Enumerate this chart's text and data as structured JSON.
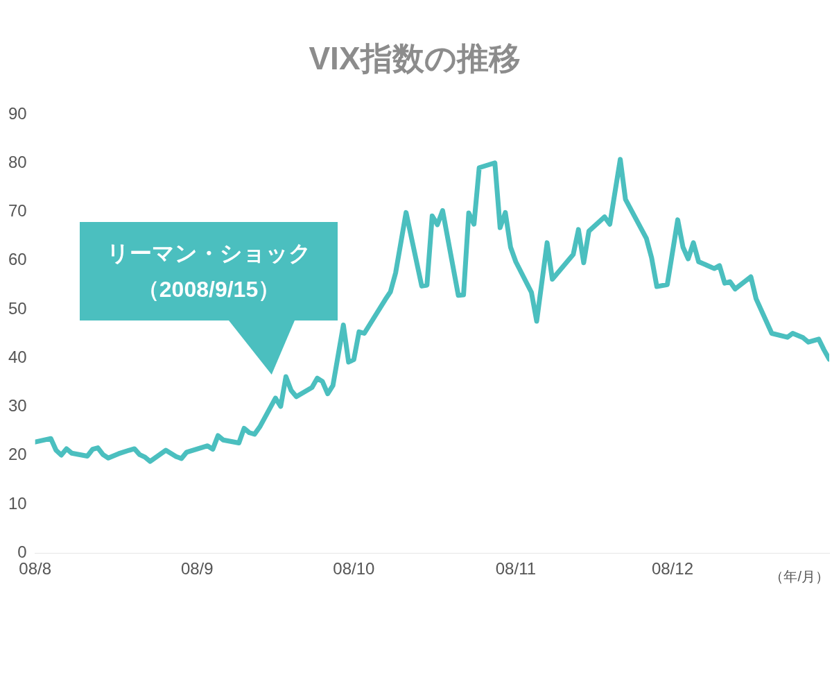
{
  "chart_data": {
    "type": "line",
    "title": "VIX指数の推移",
    "xlim": [
      "2008-08-01",
      "2008-12-31"
    ],
    "xticks": [
      {
        "value": "2008-08-01",
        "label": "08/8"
      },
      {
        "value": "2008-09-01",
        "label": "08/9"
      },
      {
        "value": "2008-10-01",
        "label": "08/10"
      },
      {
        "value": "2008-11-01",
        "label": "08/11"
      },
      {
        "value": "2008-12-01",
        "label": "08/12"
      }
    ],
    "ylim": [
      0,
      90
    ],
    "yticks": [
      0,
      10,
      20,
      30,
      40,
      50,
      60,
      70,
      80,
      90
    ],
    "grid": false,
    "legend": false,
    "marker": "none",
    "line_style": "solid",
    "annotations": [
      "リーマン・ショック（2008/9/15）",
      "（年/月）"
    ],
    "series": [
      {
        "color": "#4bbfbf",
        "x": [
          "2008-08-01",
          "2008-08-04",
          "2008-08-05",
          "2008-08-06",
          "2008-08-07",
          "2008-08-08",
          "2008-08-11",
          "2008-08-12",
          "2008-08-13",
          "2008-08-14",
          "2008-08-15",
          "2008-08-17",
          "2008-08-19",
          "2008-08-20",
          "2008-08-21",
          "2008-08-22",
          "2008-08-23",
          "2008-08-26",
          "2008-08-28",
          "2008-08-29",
          "2008-08-30",
          "2008-09-03",
          "2008-09-04",
          "2008-09-05",
          "2008-09-06",
          "2008-09-09",
          "2008-09-10",
          "2008-09-11",
          "2008-09-12",
          "2008-09-13",
          "2008-09-16",
          "2008-09-17",
          "2008-09-18",
          "2008-09-19",
          "2008-09-20",
          "2008-09-23",
          "2008-09-24",
          "2008-09-25",
          "2008-09-26",
          "2008-09-27",
          "2008-09-29",
          "2008-09-30",
          "2008-10-01",
          "2008-10-02",
          "2008-10-03",
          "2008-10-07",
          "2008-10-08",
          "2008-10-09",
          "2008-10-11",
          "2008-10-14",
          "2008-10-15",
          "2008-10-16",
          "2008-10-17",
          "2008-10-18",
          "2008-10-21",
          "2008-10-22",
          "2008-10-23",
          "2008-10-24",
          "2008-10-25",
          "2008-10-28",
          "2008-10-29",
          "2008-10-30",
          "2008-10-31",
          "2008-11-01",
          "2008-11-04",
          "2008-11-05",
          "2008-11-07",
          "2008-11-08",
          "2008-11-12",
          "2008-11-13",
          "2008-11-14",
          "2008-11-15",
          "2008-11-18",
          "2008-11-19",
          "2008-11-21",
          "2008-11-22",
          "2008-11-26",
          "2008-11-27",
          "2008-11-28",
          "2008-11-30",
          "2008-12-02",
          "2008-12-03",
          "2008-12-04",
          "2008-12-05",
          "2008-12-06",
          "2008-12-09",
          "2008-12-10",
          "2008-12-11",
          "2008-12-12",
          "2008-12-13",
          "2008-12-16",
          "2008-12-17",
          "2008-12-20",
          "2008-12-23",
          "2008-12-24",
          "2008-12-26",
          "2008-12-27",
          "2008-12-29",
          "2008-12-30",
          "2008-12-31"
        ],
        "values": [
          22.8,
          23.5,
          21.1,
          20.1,
          21.4,
          20.5,
          19.9,
          21.3,
          21.6,
          20.2,
          19.5,
          20.4,
          21.1,
          21.4,
          20.2,
          19.7,
          18.8,
          21.1,
          19.8,
          19.4,
          20.7,
          22.0,
          21.3,
          24.1,
          23.2,
          22.6,
          25.6,
          24.7,
          24.4,
          25.9,
          31.8,
          30.1,
          36.2,
          33.4,
          32.1,
          34.0,
          35.9,
          35.2,
          32.7,
          34.4,
          46.8,
          39.2,
          39.7,
          45.4,
          45.1,
          52.0,
          53.6,
          57.5,
          69.9,
          54.8,
          55.0,
          69.2,
          67.4,
          70.3,
          52.9,
          53.0,
          69.8,
          67.5,
          79.1,
          80.1,
          66.8,
          69.9,
          62.8,
          59.8,
          53.5,
          47.6,
          63.7,
          56.2,
          61.3,
          66.4,
          59.6,
          66.1,
          69.0,
          67.5,
          80.8,
          72.6,
          64.6,
          60.6,
          54.7,
          55.1,
          68.4,
          62.8,
          60.4,
          63.7,
          59.8,
          58.4,
          59.0,
          55.4,
          55.7,
          54.2,
          56.7,
          52.2,
          45.1,
          44.3,
          45.1,
          44.2,
          43.3,
          43.9,
          41.7,
          39.8
        ]
      }
    ]
  }
}
